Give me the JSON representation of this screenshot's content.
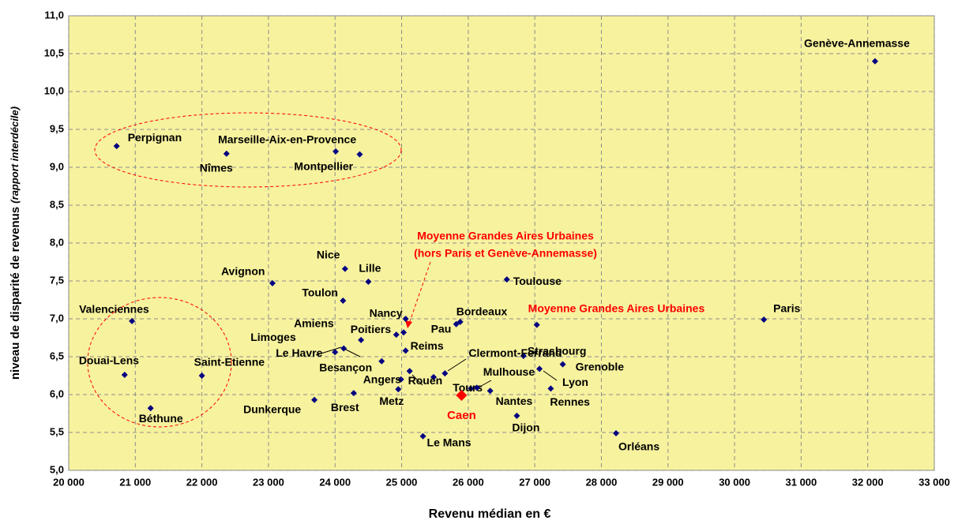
{
  "chart_data": {
    "type": "scatter",
    "x_label": "Revenu médian en €",
    "y_label": "niveau de disparité de revenus",
    "y_label_note": "(rapport interdécile)",
    "xlim": [
      20000,
      33000
    ],
    "ylim": [
      5.0,
      11.0
    ],
    "xticks": [
      {
        "value": 20000,
        "label": "20 000"
      },
      {
        "value": 21000,
        "label": "21 000"
      },
      {
        "value": 22000,
        "label": "22 000"
      },
      {
        "value": 23000,
        "label": "23 000"
      },
      {
        "value": 24000,
        "label": "24 000"
      },
      {
        "value": 25000,
        "label": "25 000"
      },
      {
        "value": 26000,
        "label": "26 000"
      },
      {
        "value": 27000,
        "label": "27 000"
      },
      {
        "value": 28000,
        "label": "28 000"
      },
      {
        "value": 29000,
        "label": "29 000"
      },
      {
        "value": 30000,
        "label": "30 000"
      },
      {
        "value": 31000,
        "label": "31 000"
      },
      {
        "value": 32000,
        "label": "32 000"
      },
      {
        "value": 33000,
        "label": "33 000"
      }
    ],
    "yticks": [
      {
        "value": 5.0,
        "label": "5,0"
      },
      {
        "value": 5.5,
        "label": "5,5"
      },
      {
        "value": 6.0,
        "label": "6,0"
      },
      {
        "value": 6.5,
        "label": "6,5"
      },
      {
        "value": 7.0,
        "label": "7,0"
      },
      {
        "value": 7.5,
        "label": "7,5"
      },
      {
        "value": 8.0,
        "label": "8,0"
      },
      {
        "value": 8.5,
        "label": "8,5"
      },
      {
        "value": 9.0,
        "label": "9,0"
      },
      {
        "value": 9.5,
        "label": "9,5"
      },
      {
        "value": 10.0,
        "label": "10,0"
      },
      {
        "value": 10.5,
        "label": "10,5"
      },
      {
        "value": 11.0,
        "label": "11,0"
      }
    ],
    "grid": true,
    "color": "#000080",
    "labels": [
      "Genève-Annemasse",
      "Perpignan",
      "Nîmes",
      "Marseille-Aix-en-Provence",
      "Montpellier",
      "Nice",
      "Lille",
      "Avignon",
      "Toulon",
      "Toulouse",
      "Valenciennes",
      "Douai-Lens",
      "Saint-Etienne",
      "Béthune",
      "Paris",
      "Nancy",
      "Pau",
      "Bordeaux",
      "Amiens",
      "Poitiers",
      null,
      "Limoges",
      "Le Havre",
      "Reims",
      "Besançon",
      "Strasbourg",
      "Grenoble",
      "Lyon",
      "Clermont-Ferrand",
      null,
      "Rouen",
      "Angers",
      "Metz",
      "Tours",
      "Mulhouse",
      "Nantes",
      "Brest",
      "Dunkerque",
      "Rennes",
      "Dijon",
      "Le Mans",
      "Orléans",
      "Moyenne Grandes Aires Urbaines"
    ],
    "x": [
      32110,
      20720,
      22370,
      24010,
      24370,
      24150,
      24500,
      23060,
      24120,
      26580,
      20950,
      20840,
      22000,
      21230,
      30440,
      25060,
      25820,
      25880,
      24390,
      24920,
      25030,
      24130,
      24000,
      25060,
      24700,
      26830,
      27420,
      27070,
      25650,
      25480,
      25120,
      24990,
      24950,
      26040,
      26130,
      26330,
      24280,
      23690,
      27240,
      26730,
      25320,
      28220,
      27030
    ],
    "values": [
      10.4,
      9.28,
      9.18,
      9.21,
      9.17,
      7.66,
      7.49,
      7.47,
      7.24,
      7.52,
      6.97,
      6.26,
      6.25,
      5.82,
      6.99,
      7.0,
      6.93,
      6.96,
      6.72,
      6.79,
      6.82,
      6.61,
      6.56,
      6.58,
      6.44,
      6.51,
      6.4,
      6.34,
      6.28,
      6.23,
      6.31,
      6.2,
      6.07,
      6.08,
      6.09,
      6.05,
      6.02,
      5.93,
      6.08,
      5.72,
      5.45,
      5.49,
      6.92
    ],
    "highlight": {
      "label": "Caen",
      "x": 25900,
      "value": 5.99,
      "color": "#ff0000"
    },
    "annotations": [
      "Moyenne Grandes Aires Urbaines",
      "(hors Paris et Genève-Annemasse)"
    ]
  }
}
